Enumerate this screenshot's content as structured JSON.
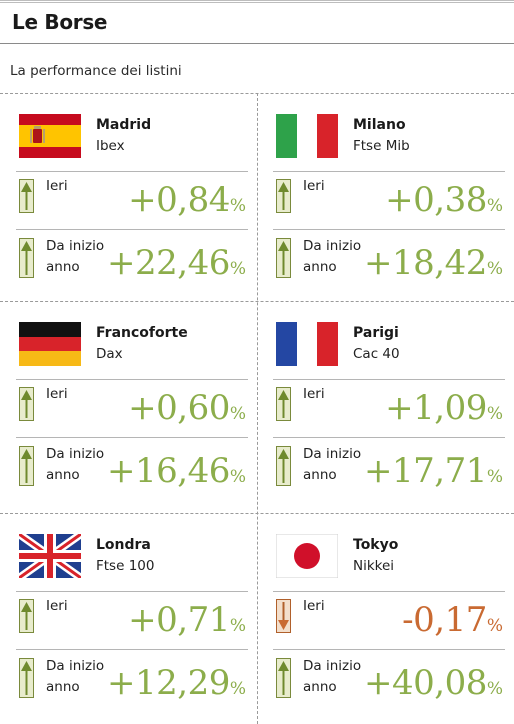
{
  "header": {
    "title": "Le Borse",
    "subtitle": "La performance dei listini"
  },
  "markets": [
    {
      "city": "Madrid",
      "index": "Ibex",
      "flag": "spain-flag",
      "ieri_label": "Ieri",
      "ieri_value": "+0,84",
      "ieri_dir": "up",
      "ytd_label_1": "Da inizio",
      "ytd_label_2": "anno",
      "ytd_value": "+22,46",
      "ytd_dir": "up",
      "pct": "%"
    },
    {
      "city": "Milano",
      "index": "Ftse Mib",
      "flag": "italy-flag",
      "ieri_label": "Ieri",
      "ieri_value": "+0,38",
      "ieri_dir": "up",
      "ytd_label_1": "Da inizio",
      "ytd_label_2": "anno",
      "ytd_value": "+18,42",
      "ytd_dir": "up",
      "pct": "%"
    },
    {
      "city": "Francoforte",
      "index": "Dax",
      "flag": "germany-flag",
      "ieri_label": "Ieri",
      "ieri_value": "+0,60",
      "ieri_dir": "up",
      "ytd_label_1": "Da inizio",
      "ytd_label_2": "anno",
      "ytd_value": "+16,46",
      "ytd_dir": "up",
      "pct": "%"
    },
    {
      "city": "Parigi",
      "index": "Cac 40",
      "flag": "france-flag",
      "ieri_label": "Ieri",
      "ieri_value": "+1,09",
      "ieri_dir": "up",
      "ytd_label_1": "Da inizio",
      "ytd_label_2": "anno",
      "ytd_value": "+17,71",
      "ytd_dir": "up",
      "pct": "%"
    },
    {
      "city": "Londra",
      "index": "Ftse 100",
      "flag": "uk-flag",
      "ieri_label": "Ieri",
      "ieri_value": "+0,71",
      "ieri_dir": "up",
      "ytd_label_1": "Da inizio",
      "ytd_label_2": "anno",
      "ytd_value": "+12,29",
      "ytd_dir": "up",
      "pct": "%"
    },
    {
      "city": "Tokyo",
      "index": "Nikkei",
      "flag": "japan-flag",
      "ieri_label": "Ieri",
      "ieri_value": "-0,17",
      "ieri_dir": "down",
      "ytd_label_1": "Da inizio",
      "ytd_label_2": "anno",
      "ytd_value": "+40,08",
      "ytd_dir": "up",
      "pct": "%"
    }
  ],
  "colors": {
    "positive": "#8cad4b",
    "negative": "#c96a32",
    "arrow_up_border": "#7a8a3c",
    "arrow_down_border": "#b0602b"
  }
}
